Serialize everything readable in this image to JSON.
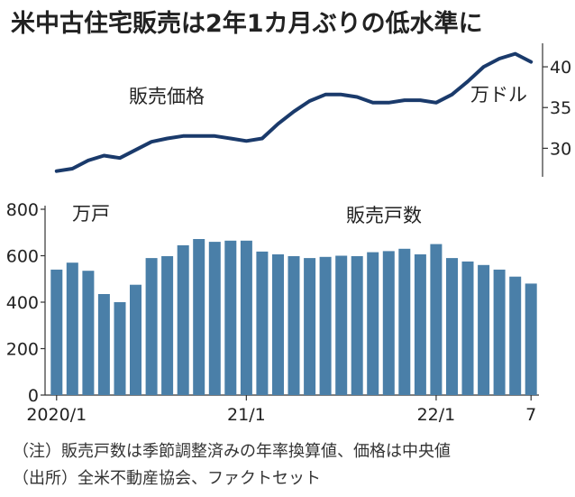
{
  "title": "米中古住宅販売は2年1カ月ぶりの低水準に",
  "notes": [
    "（注）販売戸数は季節調整済みの年率換算値、価格は中央値",
    "（出所）全米不動産協会、ファクトセット"
  ],
  "colors": {
    "line": "#1a3a6b",
    "bar": "#4a7fa8",
    "axis": "#333333",
    "text": "#222222"
  },
  "chart_data": [
    {
      "type": "line",
      "label": "販売価格",
      "unit_label": "万ドル",
      "ylim": [
        26.5,
        42
      ],
      "yticks": [
        30,
        35,
        40
      ],
      "tick_side": "right",
      "grid": false,
      "x": [
        "2020/1",
        "2020/2",
        "2020/3",
        "2020/4",
        "2020/5",
        "2020/6",
        "2020/7",
        "2020/8",
        "2020/9",
        "2020/10",
        "2020/11",
        "2020/12",
        "2021/1",
        "2021/2",
        "2021/3",
        "2021/4",
        "2021/5",
        "2021/6",
        "2021/7",
        "2021/8",
        "2021/9",
        "2021/10",
        "2021/11",
        "2021/12",
        "2022/1",
        "2022/2",
        "2022/3",
        "2022/4",
        "2022/5",
        "2022/6",
        "2022/7"
      ],
      "values": [
        27.2,
        27.5,
        28.5,
        29.1,
        28.8,
        29.8,
        30.8,
        31.2,
        31.5,
        31.5,
        31.5,
        31.2,
        30.9,
        31.2,
        33.0,
        34.5,
        35.8,
        36.6,
        36.6,
        36.3,
        35.6,
        35.6,
        35.9,
        35.9,
        35.6,
        36.6,
        38.2,
        40.0,
        41.0,
        41.6,
        40.6
      ]
    },
    {
      "type": "bar",
      "label": "販売戸数",
      "unit_label": "万戸",
      "ylim": [
        0,
        800
      ],
      "yticks": [
        0,
        200,
        400,
        600,
        800
      ],
      "tick_side": "left",
      "grid": false,
      "x_tick_labels": [
        {
          "index": 0,
          "label": "2020/1"
        },
        {
          "index": 12,
          "label": "21/1"
        },
        {
          "index": 24,
          "label": "22/1"
        },
        {
          "index": 30,
          "label": "7"
        }
      ],
      "x": [
        "2020/1",
        "2020/2",
        "2020/3",
        "2020/4",
        "2020/5",
        "2020/6",
        "2020/7",
        "2020/8",
        "2020/9",
        "2020/10",
        "2020/11",
        "2020/12",
        "2021/1",
        "2021/2",
        "2021/3",
        "2021/4",
        "2021/5",
        "2021/6",
        "2021/7",
        "2021/8",
        "2021/9",
        "2021/10",
        "2021/11",
        "2021/12",
        "2022/1",
        "2022/2",
        "2022/3",
        "2022/4",
        "2022/5",
        "2022/6",
        "2022/7"
      ],
      "values": [
        540,
        570,
        535,
        435,
        400,
        475,
        590,
        598,
        645,
        672,
        660,
        665,
        665,
        618,
        606,
        598,
        590,
        595,
        600,
        598,
        615,
        620,
        630,
        606,
        650,
        590,
        575,
        560,
        540,
        510,
        480
      ]
    }
  ]
}
